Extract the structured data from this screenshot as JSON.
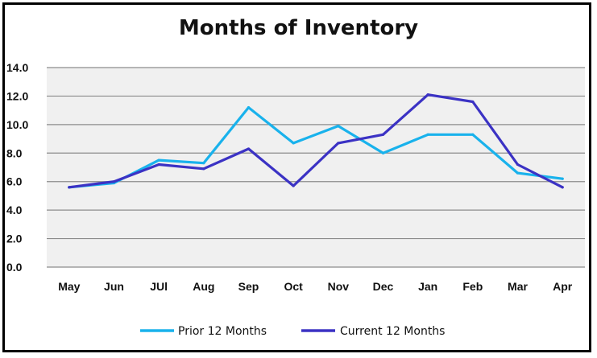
{
  "chart_data": {
    "type": "line",
    "title": "Months of Inventory",
    "categories": [
      "May",
      "Jun",
      "JUl",
      "Aug",
      "Sep",
      "Oct",
      "Nov",
      "Dec",
      "Jan",
      "Feb",
      "Mar",
      "Apr"
    ],
    "ylim": [
      0,
      14
    ],
    "yticks": [
      "0.0",
      "2.0",
      "4.0",
      "6.0",
      "8.0",
      "10.0",
      "12.0",
      "14.0"
    ],
    "grid": true,
    "legend_position": "bottom",
    "series": [
      {
        "name": "Prior 12 Months",
        "color": "#19b2ec",
        "values": [
          5.6,
          5.9,
          7.5,
          7.3,
          11.2,
          8.7,
          9.9,
          8.0,
          9.3,
          9.3,
          6.6,
          6.2
        ]
      },
      {
        "name": "Current 12 Months",
        "color": "#3b32c4",
        "values": [
          5.6,
          6.0,
          7.2,
          6.9,
          8.3,
          5.7,
          8.7,
          9.3,
          12.1,
          11.6,
          7.2,
          5.6
        ]
      }
    ],
    "plot_background": "#f0f0f0",
    "grid_color": "#8c8c8c"
  }
}
